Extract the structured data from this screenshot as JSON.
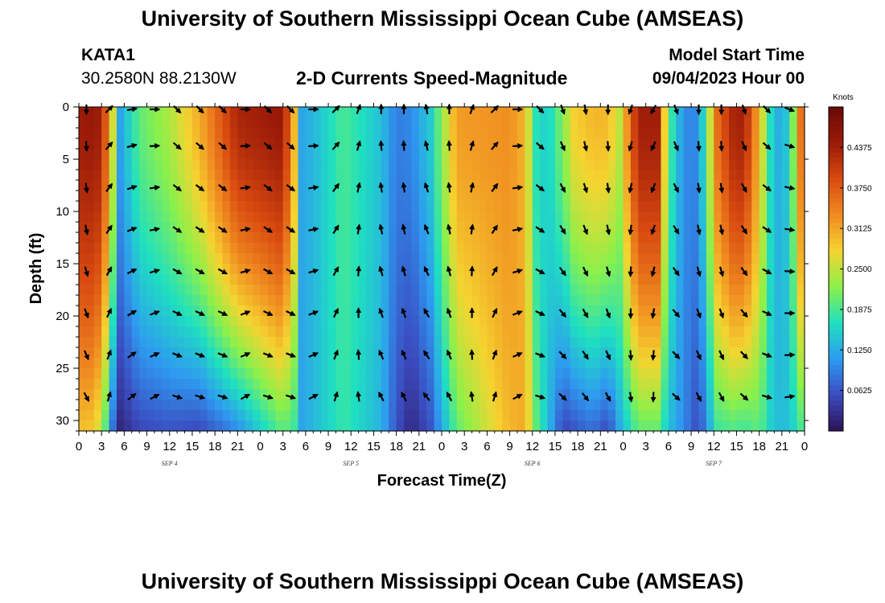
{
  "page": {
    "title": "University of Southern Mississippi Ocean Cube (AMSEAS)",
    "station": "KATA1",
    "coords": "30.2580N  88.2130W",
    "subtitle": "2-D Currents Speed-Magnitude",
    "model_label": "Model Start Time",
    "model_time": "09/04/2023 Hour 00",
    "footer_title": "University of Southern Mississippi Ocean Cube (AMSEAS)"
  },
  "colors": {
    "scale": [
      "#2d1155",
      "#3b4cc0",
      "#2e9bf0",
      "#1fe0c0",
      "#8cf04a",
      "#f5d430",
      "#f08a20",
      "#d84a10",
      "#9a1a08",
      "#6a0a08"
    ],
    "arrow": "#000000"
  },
  "chart_data": {
    "type": "heatmap",
    "title": "2-D Currents Speed-Magnitude",
    "xlabel": "Forecast Time(Z)",
    "ylabel": "Depth (ft)",
    "xlim": [
      0,
      96
    ],
    "ylim": [
      0,
      31
    ],
    "x_tick_values": [
      0,
      3,
      6,
      9,
      12,
      15,
      18,
      21,
      24,
      27,
      30,
      33,
      36,
      39,
      42,
      45,
      48,
      51,
      54,
      57,
      60,
      63,
      66,
      69,
      72,
      75,
      78,
      81,
      84,
      87,
      90,
      93,
      96
    ],
    "x_tick_labels": [
      "0",
      "3",
      "6",
      "9",
      "12",
      "15",
      "18",
      "21",
      "0",
      "3",
      "6",
      "9",
      "12",
      "15",
      "18",
      "21",
      "0",
      "3",
      "6",
      "9",
      "12",
      "15",
      "18",
      "21",
      "0",
      "3",
      "6",
      "9",
      "12",
      "15",
      "18",
      "21",
      "0"
    ],
    "y_ticks": [
      0,
      5,
      10,
      15,
      20,
      25,
      30
    ],
    "date_labels": [
      {
        "hour": 12,
        "label": "SEP 4"
      },
      {
        "hour": 36,
        "label": "SEP 5"
      },
      {
        "hour": 60,
        "label": "SEP 6"
      },
      {
        "hour": 84,
        "label": "SEP 7"
      }
    ],
    "colorbar": {
      "title": "Knots",
      "min": 0,
      "max": 0.5,
      "ticks": [
        0.0625,
        0.125,
        0.1875,
        0.25,
        0.3125,
        0.375,
        0.4375
      ],
      "tick_labels": [
        "0.0625",
        "0.1250",
        "0.1875",
        "0.2500",
        "0.3125",
        "0.3750",
        "0.4375"
      ]
    },
    "speed_profile_hours": [
      0,
      1,
      3,
      4.5,
      5.5,
      8,
      12,
      16,
      21,
      27,
      28.5,
      29.5,
      31.5,
      35,
      40,
      42,
      44,
      46.5,
      50,
      57,
      59,
      60.5,
      62,
      64,
      65.5,
      68,
      70,
      71.5,
      74,
      76.5,
      78,
      80,
      82,
      84.5,
      86.5,
      88,
      90,
      92,
      94,
      96
    ],
    "speed_profile_surface": [
      0.44,
      0.45,
      0.44,
      0.26,
      0.12,
      0.2,
      0.24,
      0.31,
      0.43,
      0.45,
      0.3,
      0.12,
      0.14,
      0.19,
      0.14,
      0.09,
      0.1,
      0.15,
      0.32,
      0.33,
      0.3,
      0.17,
      0.15,
      0.22,
      0.28,
      0.3,
      0.3,
      0.25,
      0.44,
      0.44,
      0.2,
      0.1,
      0.1,
      0.36,
      0.43,
      0.44,
      0.3,
      0.12,
      0.15,
      0.42
    ],
    "speed_profile_bottom": [
      0.28,
      0.3,
      0.25,
      0.08,
      0.02,
      0.05,
      0.06,
      0.05,
      0.1,
      0.2,
      0.18,
      0.12,
      0.14,
      0.18,
      0.13,
      0.06,
      0.02,
      0.06,
      0.2,
      0.3,
      0.31,
      0.2,
      0.14,
      0.05,
      0.06,
      0.08,
      0.05,
      0.12,
      0.2,
      0.2,
      0.14,
      0.1,
      0.05,
      0.18,
      0.19,
      0.18,
      0.2,
      0.14,
      0.14,
      0.2
    ],
    "arrow_hours": [
      1,
      4,
      7,
      10,
      13,
      16,
      19,
      22,
      25,
      28,
      31,
      34,
      37,
      40,
      43,
      46,
      49,
      52,
      55,
      58,
      61,
      64,
      67,
      70,
      73,
      76,
      79,
      82,
      85,
      88,
      91,
      94,
      97
    ],
    "arrow_depths_ft": [
      0,
      3.5,
      7.5,
      11.5,
      15.5,
      19.5,
      23.5,
      27.5
    ],
    "arrow_direction_by_column_deg": [
      0,
      135,
      100,
      90,
      45,
      45,
      45,
      90,
      45,
      45,
      90,
      135,
      160,
      180,
      180,
      190,
      180,
      160,
      135,
      90,
      45,
      20,
      10,
      0,
      340,
      330,
      20,
      0,
      0,
      20,
      45,
      70,
      90
    ]
  }
}
